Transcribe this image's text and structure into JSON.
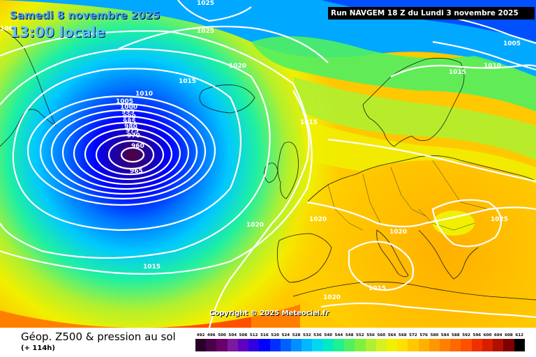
{
  "header": {
    "date_text": "Samedi 8 novembre 2025",
    "time_text": "13:00 locale",
    "run_text": "Run NAVGEM 18 Z du Lundi 3 novembre 2025"
  },
  "footer": {
    "product_title": "Géop. Z500 & pression au sol",
    "forecast_hour": "(+ 114h)",
    "copyright": "Copyright © 2025 Meteociel.fr"
  },
  "legend": {
    "levels": [
      "492",
      "496",
      "500",
      "504",
      "508",
      "512",
      "516",
      "520",
      "524",
      "528",
      "532",
      "536",
      "540",
      "544",
      "548",
      "552",
      "556",
      "560",
      "564",
      "568",
      "572",
      "576",
      "580",
      "584",
      "588",
      "592",
      "596",
      "600",
      "604",
      "608",
      "612"
    ],
    "colors": [
      "#2a002a",
      "#4a004a",
      "#6a006a",
      "#7a1aa0",
      "#6000c0",
      "#3000e0",
      "#0000ff",
      "#0030ff",
      "#0060ff",
      "#0090ff",
      "#00b8ff",
      "#00d8f0",
      "#00ecc0",
      "#20f090",
      "#50f060",
      "#80f040",
      "#b0f030",
      "#d8f020",
      "#f0f000",
      "#ffe000",
      "#ffc800",
      "#ffb000",
      "#ff9800",
      "#ff8000",
      "#ff6800",
      "#ff5000",
      "#f03000",
      "#d82000",
      "#b01000",
      "#800000",
      "#000000"
    ]
  },
  "isobars": {
    "labels": [
      "1025",
      "1025",
      "1005",
      "1020",
      "1015",
      "1010",
      "1005",
      "1000",
      "995",
      "990",
      "985",
      "980",
      "975",
      "970",
      "960",
      "965",
      "1015",
      "1015",
      "1010",
      "1005",
      "1020",
      "1020",
      "1015",
      "1020",
      "1015",
      "1020",
      "1025",
      "1015"
    ]
  },
  "colors": {
    "low_center": "#4a004a",
    "deep_blue": "#0000ff",
    "cyan": "#00d8f0",
    "green": "#50f060",
    "yellow": "#f0f000",
    "orange": "#ff9800",
    "red": "#ff5000"
  }
}
